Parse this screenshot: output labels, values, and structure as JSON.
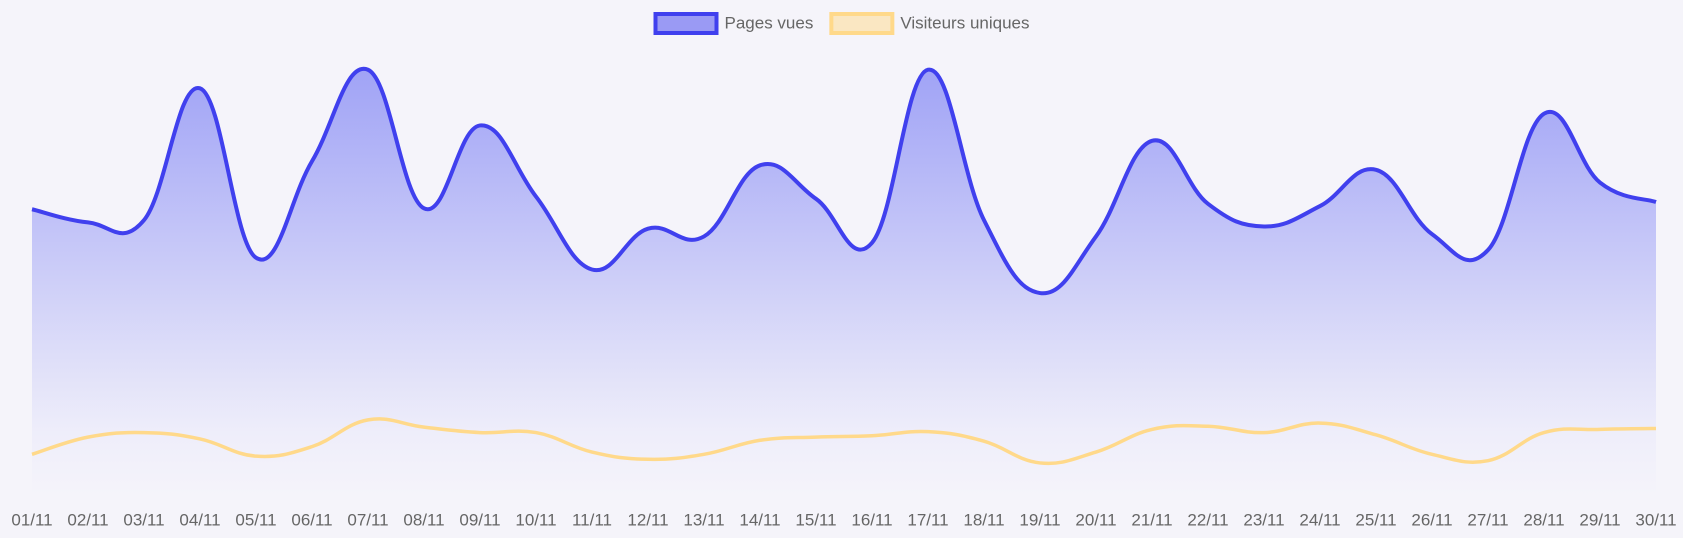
{
  "chart_data": {
    "type": "line",
    "x": [
      "01/11",
      "02/11",
      "03/11",
      "04/11",
      "05/11",
      "06/11",
      "07/11",
      "08/11",
      "09/11",
      "10/11",
      "11/11",
      "12/11",
      "13/11",
      "14/11",
      "15/11",
      "16/11",
      "17/11",
      "18/11",
      "19/11",
      "20/11",
      "21/11",
      "22/11",
      "23/11",
      "24/11",
      "25/11",
      "26/11",
      "27/11",
      "28/11",
      "29/11",
      "30/11"
    ],
    "series": [
      {
        "name": "Pages vues",
        "color": "#4040ee",
        "fill": true,
        "values": [
          63.3,
          60.4,
          60.9,
          90.0,
          52.6,
          73.9,
          94.1,
          63.5,
          81.8,
          66.1,
          50.0,
          59.0,
          57.3,
          73.0,
          65.6,
          55.9,
          94.1,
          60.9,
          44.8,
          57.3,
          78.4,
          64.5,
          59.5,
          64.0,
          72.0,
          57.8,
          54.3,
          84.4,
          69.2,
          64.9
        ]
      },
      {
        "name": "Visiteurs uniques",
        "color": "#ffd98a",
        "fill": false,
        "values": [
          9.2,
          13.0,
          14.0,
          12.6,
          8.8,
          10.9,
          16.8,
          15.2,
          14.0,
          14.0,
          9.7,
          8.1,
          9.2,
          12.3,
          13.0,
          13.3,
          14.2,
          12.1,
          7.3,
          9.7,
          14.7,
          15.4,
          14.0,
          16.1,
          13.5,
          9.2,
          7.8,
          14.0,
          14.7,
          14.9
        ]
      }
    ],
    "ylim": [
      0,
      100
    ],
    "legend": "top"
  }
}
